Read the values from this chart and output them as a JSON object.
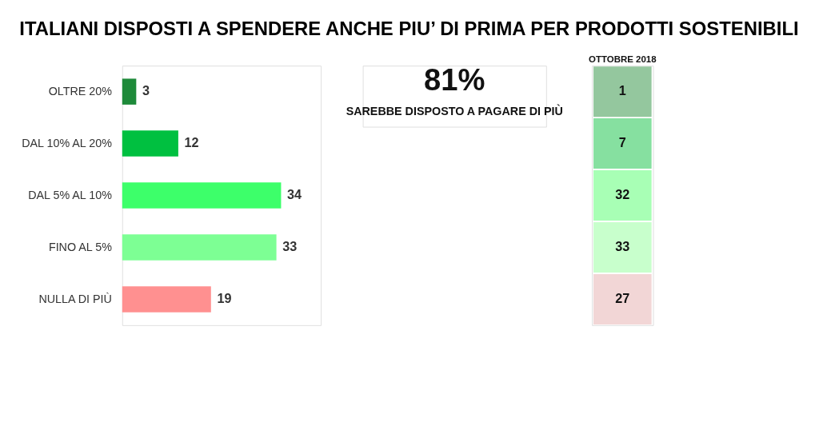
{
  "chart_data": [
    {
      "type": "bar",
      "title": "ITALIANI DISPOSTI A SPENDERE ANCHE PIU’ DI PRIMA PER PRODOTTI SOSTENIBILI",
      "orientation": "horizontal",
      "categories": [
        "OLTRE 20%",
        "DAL 10% AL 20%",
        "DAL 5% AL 10%",
        "FINO AL 5%",
        "NULLA DI PIÙ"
      ],
      "values": [
        3,
        12,
        34,
        33,
        19
      ],
      "colors": [
        "#1e8a3a",
        "#00c040",
        "#3dff6a",
        "#7dff94",
        "#ff9090"
      ],
      "data_labels": true,
      "tick_labels": "y",
      "annotations": [
        "81%",
        "SAREBBE DISPOSTO A PAGARE DI PIÙ"
      ]
    },
    {
      "type": "heatmap",
      "categories": [
        "OTTOBRE 2018"
      ],
      "y_categories": [
        null,
        null,
        null,
        null,
        null
      ],
      "cells": [
        [
          1
        ],
        [
          7
        ],
        [
          32
        ],
        [
          33
        ],
        [
          27
        ]
      ],
      "colors": [
        "#94c79e",
        "#86e0a0",
        "#a8ffb5",
        "#c8ffcc",
        "#f2d6d6"
      ],
      "data_labels": true,
      "tick_labels": "x"
    }
  ]
}
